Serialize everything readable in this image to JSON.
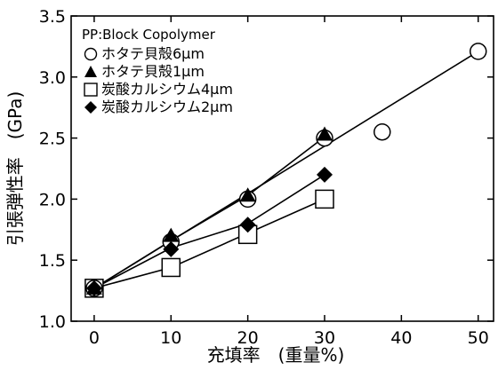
{
  "chart_data": {
    "type": "scatter",
    "xlabel": "充填率　(重量%)",
    "ylabel": "引張弾性率　(GPa)",
    "xlim": [
      -3,
      52
    ],
    "ylim": [
      1.0,
      3.5
    ],
    "x_ticks": [
      "0",
      "10",
      "20",
      "30",
      "40",
      "50"
    ],
    "y_ticks": [
      "1.0",
      "1.5",
      "2.0",
      "2.5",
      "3.0",
      "3.5"
    ],
    "grid": false,
    "legend_position": "top-left",
    "legend_title": "PP:Block Copolymer",
    "series": [
      {
        "name": "ホタテ貝殻6μm",
        "marker": "open-circle",
        "points": [
          [
            0,
            1.27
          ],
          [
            10,
            1.65
          ],
          [
            20,
            2.0
          ],
          [
            30,
            2.5
          ],
          [
            37.5,
            2.55
          ],
          [
            50,
            3.21
          ]
        ],
        "fit_line": [
          [
            0,
            1.27
          ],
          [
            50,
            3.21
          ]
        ]
      },
      {
        "name": "ホタテ貝殻1μm",
        "marker": "filled-triangle",
        "points": [
          [
            0,
            1.27
          ],
          [
            10,
            1.7
          ],
          [
            20,
            2.03
          ],
          [
            30,
            2.53
          ]
        ],
        "fit_line": [
          [
            0,
            1.27
          ],
          [
            10,
            1.66
          ],
          [
            20,
            2.03
          ],
          [
            30,
            2.51
          ]
        ]
      },
      {
        "name": "炭酸カルシウム4μm",
        "marker": "open-square",
        "points": [
          [
            0,
            1.27
          ],
          [
            10,
            1.44
          ],
          [
            20,
            1.71
          ],
          [
            30,
            2.0
          ]
        ],
        "fit_line": [
          [
            0,
            1.27
          ],
          [
            10,
            1.44
          ],
          [
            20,
            1.72
          ],
          [
            30,
            2.0
          ]
        ]
      },
      {
        "name": "炭酸カルシウム2μm",
        "marker": "filled-diamond",
        "points": [
          [
            0,
            1.27
          ],
          [
            10,
            1.59
          ],
          [
            20,
            1.79
          ],
          [
            30,
            2.2
          ]
        ],
        "fit_line": [
          [
            0,
            1.27
          ],
          [
            10,
            1.6
          ],
          [
            20,
            1.8
          ],
          [
            30,
            2.2
          ]
        ]
      }
    ]
  }
}
